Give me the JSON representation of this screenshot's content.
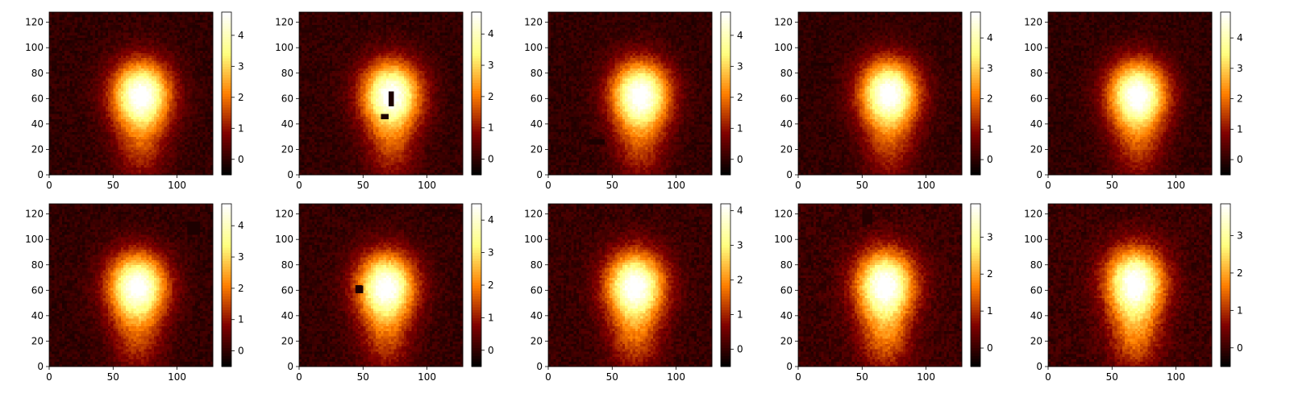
{
  "chart_data": [
    {
      "type": "heatmap",
      "colormap": "afmhot",
      "x_range": [
        0,
        128
      ],
      "y_range": [
        0,
        128
      ],
      "x_ticks": [
        0,
        50,
        100
      ],
      "y_ticks": [
        0,
        20,
        40,
        60,
        80,
        100,
        120
      ],
      "colorbar_range": [
        -0.5,
        4.75
      ],
      "colorbar_ticks": [
        0,
        1,
        2,
        3,
        4
      ],
      "blob": {
        "center_x": 72,
        "center_y": 64,
        "peak": 4.7,
        "tail_value": 1.4
      },
      "masks": []
    },
    {
      "type": "heatmap",
      "colormap": "afmhot",
      "x_range": [
        0,
        128
      ],
      "y_range": [
        0,
        128
      ],
      "x_ticks": [
        0,
        50,
        100
      ],
      "y_ticks": [
        0,
        20,
        40,
        60,
        80,
        100,
        120
      ],
      "colorbar_range": [
        -0.5,
        4.7
      ],
      "colorbar_ticks": [
        0,
        1,
        2,
        3,
        4
      ],
      "blob": {
        "center_x": 72,
        "center_y": 64,
        "peak": 4.6,
        "tail_value": 1.4
      },
      "masks": [
        {
          "x0": 70,
          "x1": 74,
          "y0": 54,
          "y1": 65
        },
        {
          "x0": 65,
          "x1": 70,
          "y0": 44,
          "y1": 47
        }
      ]
    },
    {
      "type": "heatmap",
      "colormap": "afmhot",
      "x_range": [
        0,
        128
      ],
      "y_range": [
        0,
        128
      ],
      "x_ticks": [
        0,
        50,
        100
      ],
      "y_ticks": [
        0,
        20,
        40,
        60,
        80,
        100,
        120
      ],
      "colorbar_range": [
        -0.5,
        4.75
      ],
      "colorbar_ticks": [
        0,
        1,
        2,
        3,
        4
      ],
      "blob": {
        "center_x": 72,
        "center_y": 64,
        "peak": 4.7,
        "tail_value": 1.4
      },
      "masks": [
        {
          "x0": 33,
          "x1": 43,
          "y0": 24,
          "y1": 28
        }
      ]
    },
    {
      "type": "heatmap",
      "colormap": "afmhot",
      "x_range": [
        0,
        128
      ],
      "y_range": [
        0,
        128
      ],
      "x_ticks": [
        0,
        50,
        100
      ],
      "y_ticks": [
        0,
        20,
        40,
        60,
        80,
        100,
        120
      ],
      "colorbar_range": [
        -0.5,
        4.85
      ],
      "colorbar_ticks": [
        0,
        1,
        2,
        3,
        4
      ],
      "blob": {
        "center_x": 71,
        "center_y": 65,
        "peak": 4.8,
        "tail_value": 1.4
      },
      "masks": [
        {
          "x0": 10,
          "x1": 28,
          "y0": 86,
          "y1": 88
        }
      ]
    },
    {
      "type": "heatmap",
      "colormap": "afmhot",
      "x_range": [
        0,
        128
      ],
      "y_range": [
        0,
        128
      ],
      "x_ticks": [
        0,
        50,
        100
      ],
      "y_ticks": [
        0,
        20,
        40,
        60,
        80,
        100,
        120
      ],
      "colorbar_range": [
        -0.5,
        4.85
      ],
      "colorbar_ticks": [
        0,
        1,
        2,
        3,
        4
      ],
      "blob": {
        "center_x": 70,
        "center_y": 64,
        "peak": 4.8,
        "tail_value": 1.4
      },
      "masks": []
    },
    {
      "type": "heatmap",
      "colormap": "afmhot",
      "x_range": [
        0,
        128
      ],
      "y_range": [
        0,
        128
      ],
      "x_ticks": [
        0,
        50,
        100
      ],
      "y_ticks": [
        0,
        20,
        40,
        60,
        80,
        100,
        120
      ],
      "colorbar_range": [
        -0.5,
        4.7
      ],
      "colorbar_ticks": [
        0,
        1,
        2,
        3,
        4
      ],
      "blob": {
        "center_x": 69,
        "center_y": 64,
        "peak": 4.6,
        "tail_value": 1.4
      },
      "masks": [
        {
          "x0": 108,
          "x1": 118,
          "y0": 104,
          "y1": 114
        }
      ]
    },
    {
      "type": "heatmap",
      "colormap": "afmhot",
      "x_range": [
        0,
        128
      ],
      "y_range": [
        0,
        128
      ],
      "x_ticks": [
        0,
        50,
        100
      ],
      "y_ticks": [
        0,
        20,
        40,
        60,
        80,
        100,
        120
      ],
      "colorbar_range": [
        -0.5,
        4.5
      ],
      "colorbar_ticks": [
        0,
        1,
        2,
        3,
        4
      ],
      "blob": {
        "center_x": 68,
        "center_y": 64,
        "peak": 4.4,
        "tail_value": 1.4
      },
      "masks": [
        {
          "x0": 44,
          "x1": 49,
          "y0": 59,
          "y1": 64
        }
      ]
    },
    {
      "type": "heatmap",
      "colormap": "afmhot",
      "x_range": [
        0,
        128
      ],
      "y_range": [
        0,
        128
      ],
      "x_ticks": [
        0,
        50,
        100
      ],
      "y_ticks": [
        0,
        20,
        40,
        60,
        80,
        100,
        120
      ],
      "colorbar_range": [
        -0.5,
        4.2
      ],
      "colorbar_ticks": [
        0,
        1,
        2,
        3,
        4
      ],
      "blob": {
        "center_x": 68,
        "center_y": 65,
        "peak": 4.1,
        "tail_value": 1.5
      },
      "masks": []
    },
    {
      "type": "heatmap",
      "colormap": "afmhot",
      "x_range": [
        0,
        128
      ],
      "y_range": [
        0,
        128
      ],
      "x_ticks": [
        0,
        50,
        100
      ],
      "y_ticks": [
        0,
        20,
        40,
        60,
        80,
        100,
        120
      ],
      "colorbar_range": [
        -0.5,
        3.9
      ],
      "colorbar_ticks": [
        0,
        1,
        2,
        3
      ],
      "blob": {
        "center_x": 68,
        "center_y": 66,
        "peak": 3.8,
        "tail_value": 1.6
      },
      "masks": [
        {
          "x0": 51,
          "x1": 57,
          "y0": 112,
          "y1": 120
        }
      ]
    },
    {
      "type": "heatmap",
      "colormap": "afmhot",
      "x_range": [
        0,
        128
      ],
      "y_range": [
        0,
        128
      ],
      "x_ticks": [
        0,
        50,
        100
      ],
      "y_ticks": [
        0,
        20,
        40,
        60,
        80,
        100,
        120
      ],
      "colorbar_range": [
        -0.5,
        3.85
      ],
      "colorbar_ticks": [
        0,
        1,
        2,
        3
      ],
      "blob": {
        "center_x": 68,
        "center_y": 68,
        "peak": 3.7,
        "tail_value": 1.7
      },
      "masks": []
    }
  ]
}
